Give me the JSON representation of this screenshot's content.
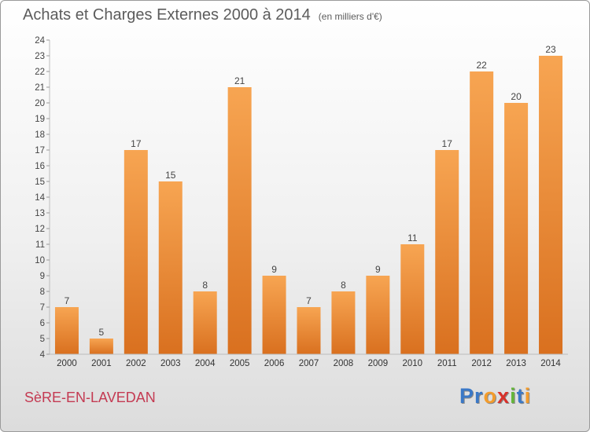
{
  "header": {
    "title": "Achats et Charges Externes 2000 à 2014",
    "subtitle": "(en milliers d'€)"
  },
  "footer": {
    "place": "SèRE-EN-LAVEDAN",
    "brand_letters": [
      {
        "ch": "P",
        "color": "#3a78c7"
      },
      {
        "ch": "r",
        "color": "#3a78c7"
      },
      {
        "ch": "o",
        "color": "#f39c2c"
      },
      {
        "ch": "x",
        "color": "#d8312a"
      },
      {
        "ch": "i",
        "color": "#64b53a"
      },
      {
        "ch": "t",
        "color": "#3a78c7"
      },
      {
        "ch": "i",
        "color": "#f39c2c"
      }
    ]
  },
  "colors": {
    "bar_top": "#f7a552",
    "bar_bottom": "#d9701f",
    "title": "#5c5c5c",
    "place": "#c43a52"
  },
  "chart_data": {
    "type": "bar",
    "categories": [
      "2000",
      "2001",
      "2002",
      "2003",
      "2004",
      "2005",
      "2006",
      "2007",
      "2008",
      "2009",
      "2010",
      "2011",
      "2012",
      "2013",
      "2014"
    ],
    "values": [
      7,
      5,
      17,
      15,
      8,
      21,
      9,
      7,
      8,
      9,
      11,
      17,
      22,
      20,
      23
    ],
    "ylim": [
      4,
      24
    ],
    "yticks": [
      4,
      5,
      6,
      7,
      8,
      9,
      10,
      11,
      12,
      13,
      14,
      15,
      16,
      17,
      18,
      19,
      20,
      21,
      22,
      23,
      24
    ],
    "grid": false,
    "data_labels": true
  }
}
